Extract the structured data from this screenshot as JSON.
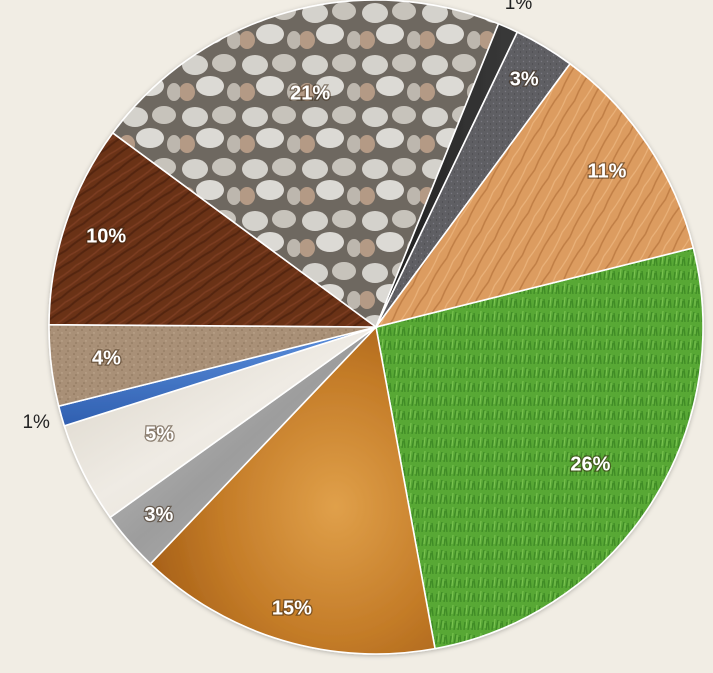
{
  "chart_data": {
    "type": "pie",
    "title": "",
    "start_angle_deg": -14,
    "direction": "clockwise",
    "slices": [
      {
        "label": "26%",
        "value": 26,
        "texture": "grass",
        "color": "#5aa83a"
      },
      {
        "label": "15%",
        "value": 15,
        "texture": "clay",
        "color": "#c07a26"
      },
      {
        "label": "3%",
        "value": 3,
        "texture": "metal",
        "color": "#a9a9a9"
      },
      {
        "label": "5%",
        "value": 5,
        "texture": "marble",
        "color": "#e6e0d6"
      },
      {
        "label": "1%",
        "value": 1,
        "texture": "water",
        "color": "#3f72c6",
        "label_outside": true
      },
      {
        "label": "4%",
        "value": 4,
        "texture": "sand",
        "color": "#ad9478"
      },
      {
        "label": "10%",
        "value": 10,
        "texture": "dark-wood",
        "color": "#6a3219"
      },
      {
        "label": "21%",
        "value": 21,
        "texture": "pebbles",
        "color": "#bfbcb6"
      },
      {
        "label": "1%",
        "value": 1,
        "texture": "slate",
        "color": "#2b2b2b",
        "label_outside": true
      },
      {
        "label": "3%",
        "value": 3,
        "texture": "asphalt",
        "color": "#5e5d63"
      },
      {
        "label": "11%",
        "value": 11,
        "texture": "light-wood",
        "color": "#d99a5e"
      }
    ]
  }
}
